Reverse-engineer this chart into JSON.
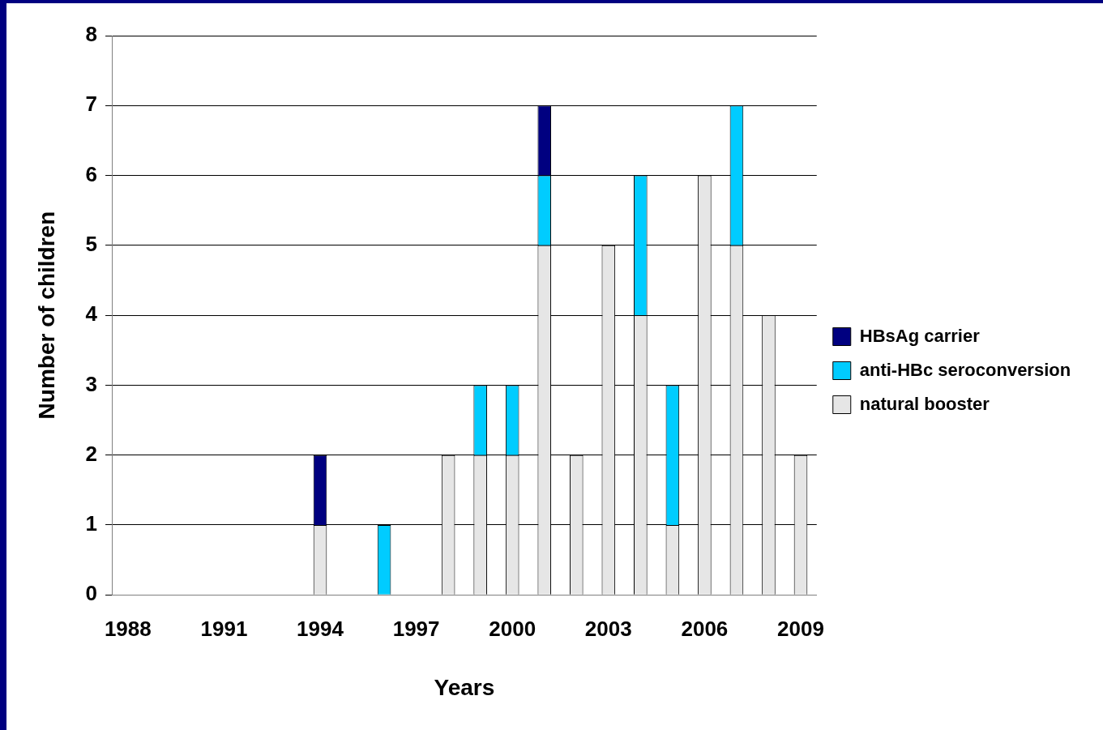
{
  "chart_data": {
    "type": "bar",
    "xlabel": "Years",
    "ylabel": "Number of children",
    "categories": [
      "1988",
      null,
      null,
      "1991",
      null,
      null,
      "1994",
      null,
      null,
      "1997",
      null,
      null,
      "2000",
      null,
      null,
      "2003",
      null,
      null,
      "2006",
      null,
      null,
      "2009"
    ],
    "stacked": true,
    "series": [
      {
        "name": "natural booster",
        "color": "#e6e6e6",
        "values": [
          0,
          0,
          0,
          0,
          0,
          0,
          1,
          0,
          0,
          0,
          2,
          2,
          2,
          5,
          2,
          5,
          4,
          1,
          6,
          5,
          4,
          2
        ]
      },
      {
        "name": "anti-HBc seroconversion",
        "color": "#00ccff",
        "values": [
          0,
          0,
          0,
          0,
          0,
          0,
          0,
          0,
          1,
          0,
          0,
          1,
          1,
          1,
          0,
          0,
          2,
          2,
          0,
          2,
          0,
          0
        ]
      },
      {
        "name": "HBsAg carrier",
        "color": "#000080",
        "values": [
          0,
          0,
          0,
          0,
          0,
          0,
          1,
          0,
          0,
          0,
          0,
          0,
          0,
          1,
          0,
          0,
          0,
          0,
          0,
          0,
          0,
          0
        ]
      }
    ],
    "ylim": [
      0,
      8
    ],
    "yticks": [
      0,
      1,
      2,
      3,
      4,
      5,
      6,
      7,
      8
    ],
    "grid": "y",
    "legend": "right"
  }
}
